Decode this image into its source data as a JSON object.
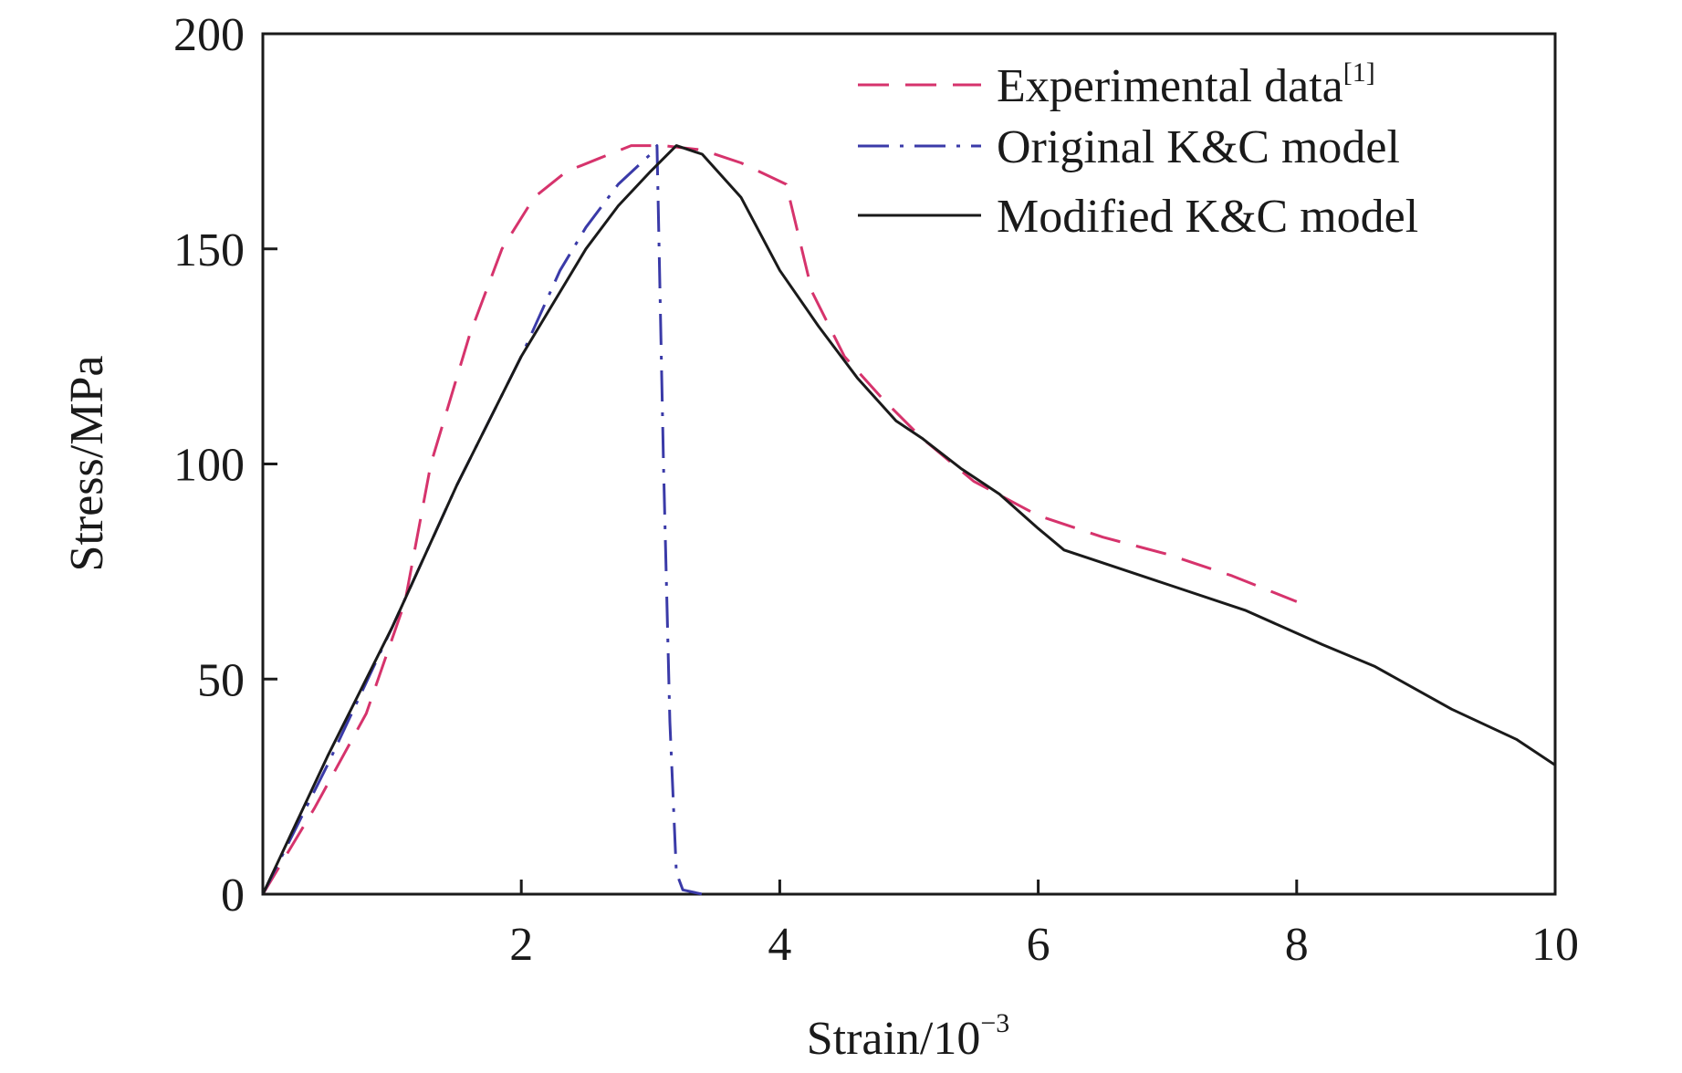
{
  "chart_data": {
    "type": "line",
    "title": "",
    "xlabel": "Strain/10",
    "xlabel_exponent": "−3",
    "ylabel": "Stress/MPa",
    "xlim": [
      0,
      10
    ],
    "ylim": [
      0,
      200
    ],
    "xticks": [
      2,
      4,
      6,
      8,
      10
    ],
    "yticks": [
      0,
      50,
      100,
      150,
      200
    ],
    "grid": false,
    "legend_position": "top-right",
    "series": [
      {
        "name": "Experimental data",
        "name_superscript": "[1]",
        "style": "dashed",
        "color": "#d6336c",
        "x": [
          0,
          0.4,
          0.8,
          1.1,
          1.3,
          1.6,
          1.85,
          2.1,
          2.35,
          2.6,
          2.85,
          3.1,
          3.4,
          3.7,
          4.05,
          4.25,
          4.5,
          4.8,
          5.1,
          5.5,
          6.0,
          6.5,
          7.0,
          7.5,
          8.0
        ],
        "values": [
          0,
          20,
          42,
          68,
          100,
          130,
          150,
          162,
          168,
          171,
          174,
          174,
          173,
          170,
          165,
          140,
          125,
          115,
          106,
          96,
          88,
          83,
          79,
          74,
          68
        ]
      },
      {
        "name": "Original K&C model",
        "style": "dashdot",
        "color": "#3a3aa8",
        "x": [
          0,
          0.5,
          1.0,
          1.5,
          2.0,
          2.3,
          2.5,
          2.75,
          3.0,
          3.05,
          3.1,
          3.15,
          3.2,
          3.25,
          3.4
        ],
        "values": [
          0,
          30,
          62,
          95,
          125,
          145,
          155,
          165,
          172,
          174,
          100,
          40,
          5,
          1,
          0
        ]
      },
      {
        "name": "Modified K&C model",
        "style": "solid",
        "color": "#1a1a1a",
        "x": [
          0,
          0.5,
          1.0,
          1.5,
          2.0,
          2.3,
          2.5,
          2.75,
          3.0,
          3.2,
          3.4,
          3.7,
          4.0,
          4.3,
          4.6,
          4.9,
          5.1,
          5.4,
          5.7,
          6.0,
          6.2,
          6.4,
          7.0,
          7.6,
          8.2,
          8.6,
          9.2,
          9.7,
          10.0
        ],
        "values": [
          0,
          32,
          62,
          95,
          125,
          140,
          150,
          160,
          168,
          174,
          172,
          162,
          145,
          132,
          120,
          110,
          106,
          99,
          93,
          85,
          80,
          78,
          72,
          66,
          58,
          53,
          43,
          36,
          30
        ]
      }
    ]
  }
}
